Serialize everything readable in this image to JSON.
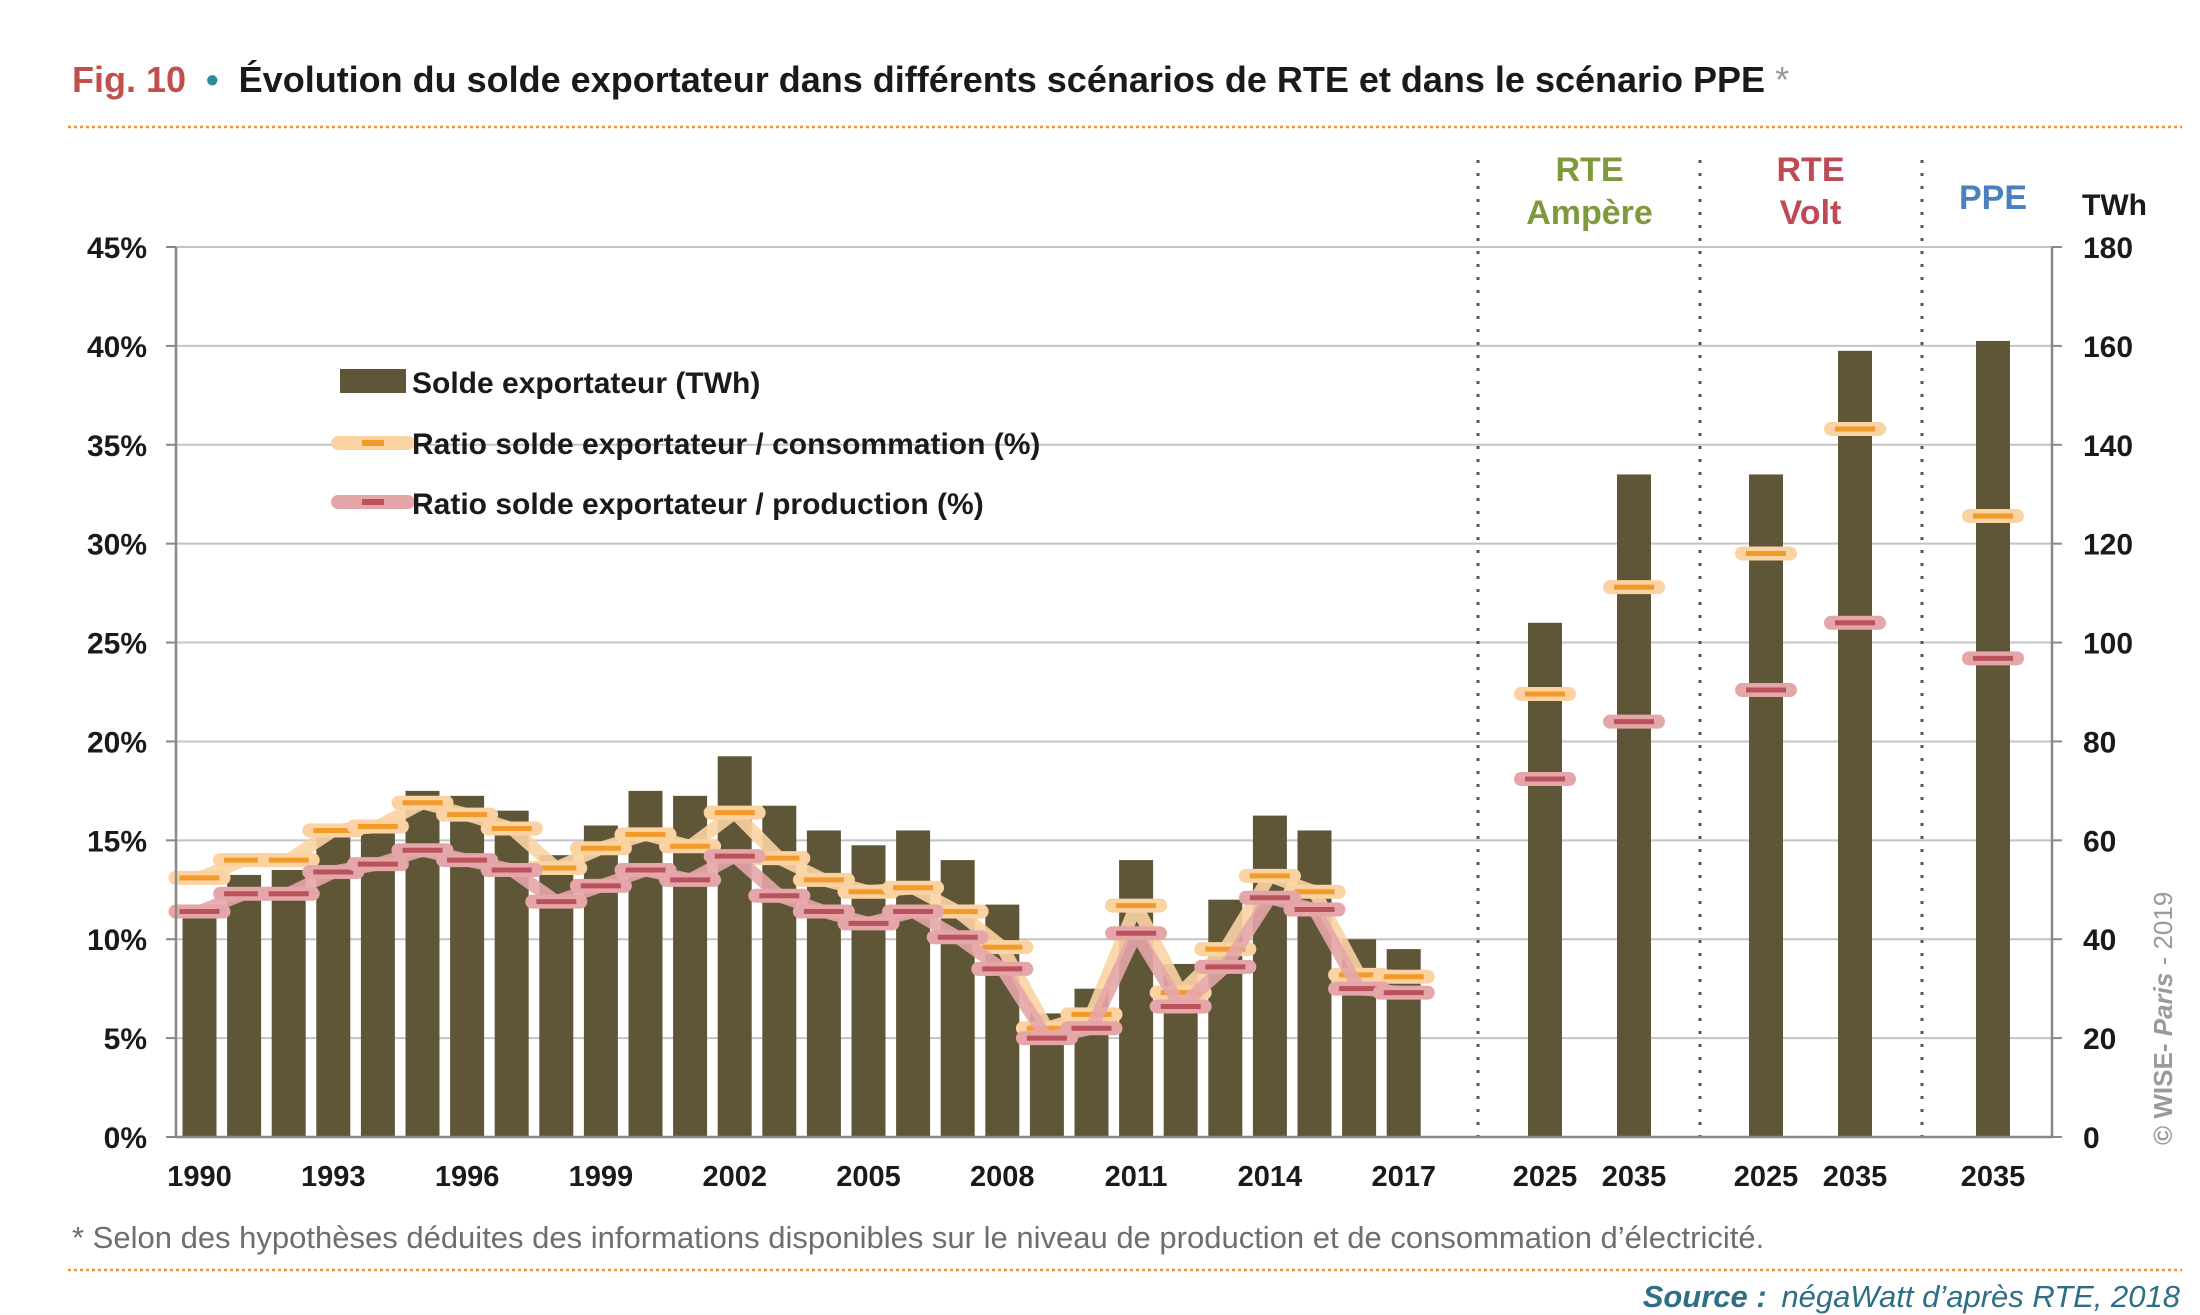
{
  "header": {
    "fig_label": "Fig. 10",
    "bullet": "•",
    "title": "Évolution du solde exportateur dans différents scénarios de RTE et dans le scénario PPE",
    "asterisk": "*"
  },
  "footnote": "* Selon des hypothèses déduites des informations disponibles sur le niveau de production et de consommation d’électricité.",
  "source": {
    "label": "Source :",
    "text": "négaWatt d’après RTE, 2018"
  },
  "copyright": {
    "symbol": "© WISE-",
    "italic": "Paris",
    "year": " - 2019"
  },
  "colors": {
    "bar": "#5f5638",
    "ratio_consumption": "#f39a2a",
    "ratio_consumption_band": "#fbd3a3",
    "ratio_production": "#b9525a",
    "ratio_production_band": "#e5a6a9",
    "rte_ampere": "#7e9a3c",
    "rte_volt": "#bf4a55",
    "ppe": "#4a7fc0",
    "title_red": "#c0504d",
    "bullet_teal": "#2e8b9a",
    "source_teal": "#2e6f86"
  },
  "chart_data": {
    "type": "bar",
    "left_axis": {
      "ticks": [
        "0%",
        "5%",
        "10%",
        "15%",
        "20%",
        "25%",
        "30%",
        "35%",
        "40%",
        "45%"
      ],
      "range": [
        0,
        45
      ]
    },
    "right_axis": {
      "unit": "TWh",
      "ticks": [
        "0",
        "20",
        "40",
        "60",
        "80",
        "100",
        "120",
        "140",
        "160",
        "180"
      ],
      "range": [
        0,
        180
      ]
    },
    "grid": true,
    "legend_position": "top-left",
    "legend": [
      "Solde exportateur (TWh)",
      "Ratio solde exportateur / consommation (%)",
      "Ratio solde exportateur / production (%)"
    ],
    "history": {
      "years": [
        1990,
        1991,
        1992,
        1993,
        1994,
        1995,
        1996,
        1997,
        1998,
        1999,
        2000,
        2001,
        2002,
        2003,
        2004,
        2005,
        2006,
        2007,
        2008,
        2009,
        2010,
        2011,
        2012,
        2013,
        2014,
        2015,
        2016,
        2017
      ],
      "x_labels": [
        "1990",
        "1993",
        "1996",
        "1999",
        "2002",
        "2005",
        "2008",
        "2011",
        "2014",
        "2017"
      ],
      "solde_twh": [
        46,
        53,
        54,
        62,
        63,
        70,
        69,
        66,
        57,
        63,
        70,
        69,
        77,
        67,
        62,
        59,
        62,
        56,
        47,
        25,
        30,
        56,
        35,
        48,
        65,
        62,
        40,
        38
      ],
      "ratio_consommation": [
        13.1,
        14.0,
        14.0,
        15.5,
        15.7,
        16.9,
        16.3,
        15.6,
        13.6,
        14.6,
        15.3,
        14.7,
        16.4,
        14.1,
        13.0,
        12.4,
        12.6,
        11.4,
        9.6,
        5.5,
        6.2,
        11.7,
        7.3,
        9.5,
        13.2,
        12.4,
        8.2,
        8.1
      ],
      "ratio_production": [
        11.4,
        12.3,
        12.3,
        13.4,
        13.8,
        14.5,
        14.0,
        13.5,
        11.9,
        12.7,
        13.5,
        13.0,
        14.2,
        12.2,
        11.4,
        10.8,
        11.4,
        10.1,
        8.5,
        5.0,
        5.5,
        10.3,
        6.6,
        8.6,
        12.1,
        11.5,
        7.5,
        7.3
      ]
    },
    "scenarios": [
      {
        "group": "RTE Ampère",
        "group_lines": [
          "RTE",
          "Ampère"
        ],
        "year": "2025",
        "solde_twh": 104,
        "ratio_consommation": 22.4,
        "ratio_production": 18.1
      },
      {
        "group": "RTE Ampère",
        "group_lines": [
          "RTE",
          "Ampère"
        ],
        "year": "2035",
        "solde_twh": 134,
        "ratio_consommation": 27.8,
        "ratio_production": 21.0
      },
      {
        "group": "RTE Volt",
        "group_lines": [
          "RTE",
          "Volt"
        ],
        "year": "2025",
        "solde_twh": 134,
        "ratio_consommation": 29.5,
        "ratio_production": 22.6
      },
      {
        "group": "RTE Volt",
        "group_lines": [
          "RTE",
          "Volt"
        ],
        "year": "2035",
        "solde_twh": 159,
        "ratio_consommation": 35.8,
        "ratio_production": 26.0
      },
      {
        "group": "PPE",
        "group_lines": [
          "PPE"
        ],
        "year": "2035",
        "solde_twh": 161,
        "ratio_consommation": 31.4,
        "ratio_production": 24.2
      }
    ]
  }
}
